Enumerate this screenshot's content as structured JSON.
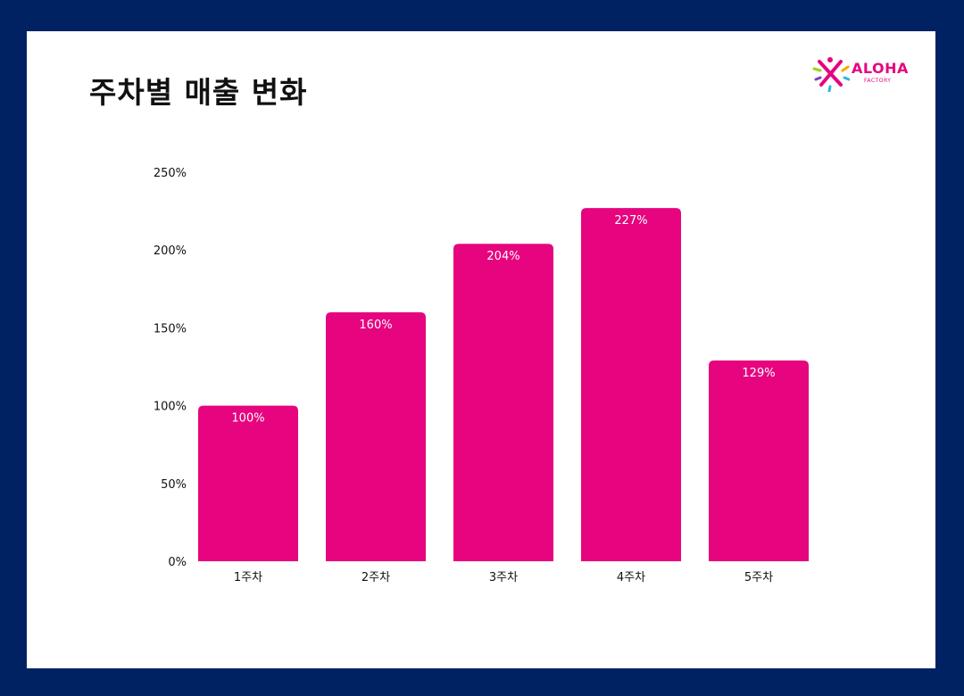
{
  "colors": {
    "frame": "#002263",
    "card": "#ffffff",
    "bar": "#e6057f",
    "title": "#111111"
  },
  "logo": {
    "name": "ALOHA",
    "sub": "FACTORY",
    "icon": "starburst-icon"
  },
  "chart_data": {
    "type": "bar",
    "title": "주차별 매출 변화",
    "categories": [
      "1주차",
      "2주차",
      "3주차",
      "4주차",
      "5주차"
    ],
    "values": [
      100,
      160,
      204,
      227,
      129
    ],
    "data_labels": [
      "100%",
      "160%",
      "204%",
      "227%",
      "129%"
    ],
    "ylim": [
      0,
      250
    ],
    "yticks": [
      0,
      50,
      100,
      150,
      200,
      250
    ],
    "ytick_labels": [
      "0%",
      "50%",
      "100%",
      "150%",
      "200%",
      "250%"
    ],
    "grid": false,
    "legend": "none",
    "xlabel": "",
    "ylabel": ""
  }
}
